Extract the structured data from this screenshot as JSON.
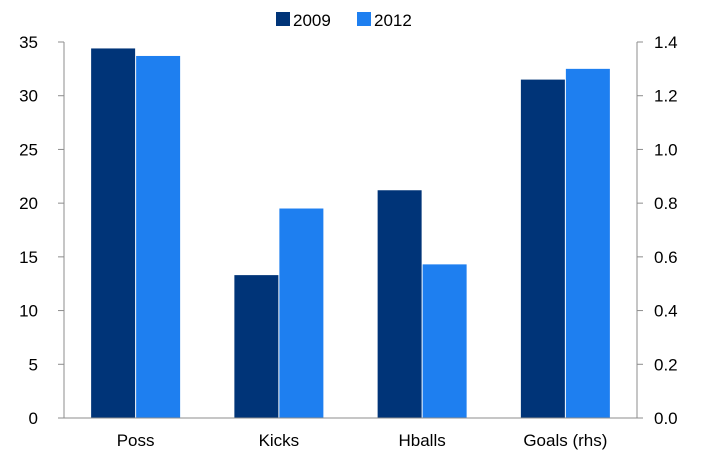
{
  "chart_data": {
    "type": "bar",
    "categories": [
      "Poss",
      "Kicks",
      "Hballs",
      "Goals (rhs)"
    ],
    "series": [
      {
        "name": "2009",
        "color": "#003478",
        "values": [
          34.4,
          13.3,
          21.2,
          1.26
        ]
      },
      {
        "name": "2012",
        "color": "#1e7ff0",
        "values": [
          33.7,
          19.5,
          14.3,
          1.3
        ]
      }
    ],
    "axis_assignment": [
      "left",
      "left",
      "left",
      "right"
    ],
    "y_left": {
      "ylim": [
        0,
        35
      ],
      "ticks": [
        "0",
        "5",
        "10",
        "15",
        "20",
        "25",
        "30",
        "35"
      ]
    },
    "y_right": {
      "ylim": [
        0,
        1.4
      ],
      "ticks": [
        "0.0",
        "0.2",
        "0.4",
        "0.6",
        "0.8",
        "1.0",
        "1.2",
        "1.4"
      ]
    },
    "title": "",
    "xlabel": "",
    "grid": false,
    "legend_position": "top-center"
  }
}
